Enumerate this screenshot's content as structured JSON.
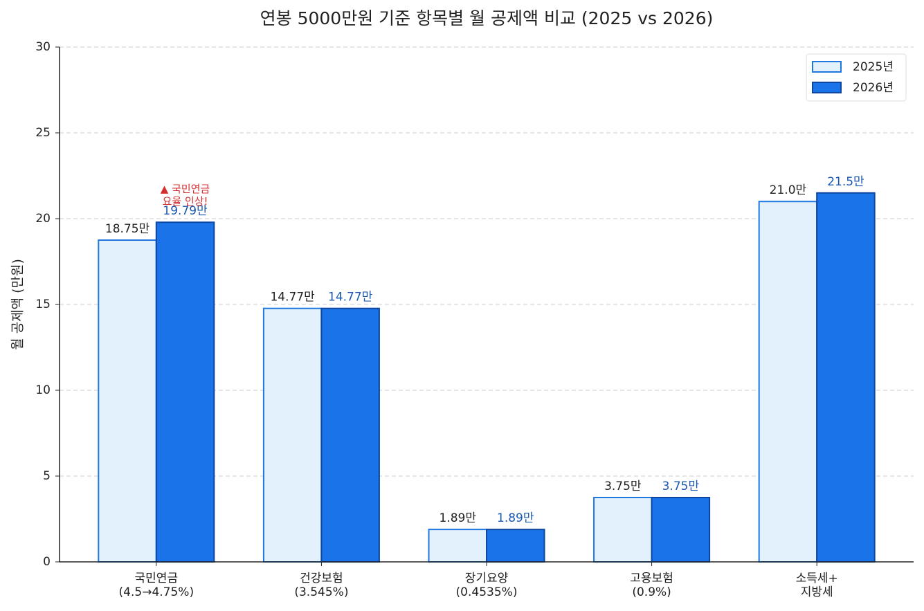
{
  "chart_data": {
    "type": "bar",
    "title": "연봉 5000만원 기준 항목별 월 공제액 비교 (2025 vs 2026)",
    "ylabel": "월 공제액 (만원)",
    "categories": [
      "국민연금\n(4.5→4.75%)",
      "건강보험\n(3.545%)",
      "장기요양\n(0.4535%)",
      "고용보험\n(0.9%)",
      "소득세+\n지방세"
    ],
    "series": [
      {
        "name": "2025년",
        "color": "#e3f1fc",
        "edge_color": "#1e78e0",
        "label_color": "#222222",
        "values": [
          18.75,
          14.77,
          1.89,
          3.75,
          21.0
        ],
        "value_labels": [
          "18.75만",
          "14.77만",
          "1.89만",
          "3.75만",
          "21.0만"
        ]
      },
      {
        "name": "2026년",
        "color": "#1a73e8",
        "edge_color": "#0d47a1",
        "label_color": "#1a57b0",
        "values": [
          19.79,
          14.77,
          1.89,
          3.75,
          21.5
        ],
        "value_labels": [
          "19.79만",
          "14.77만",
          "1.89만",
          "3.75만",
          "21.5만"
        ]
      }
    ],
    "annotation": {
      "text": "▲ 국민연금\n요율 인상!",
      "color": "#d32f2f"
    },
    "ylim": [
      0,
      30
    ],
    "yticks": [
      0,
      5,
      10,
      15,
      20,
      25,
      30
    ],
    "grid": true,
    "legend": "upper right"
  }
}
